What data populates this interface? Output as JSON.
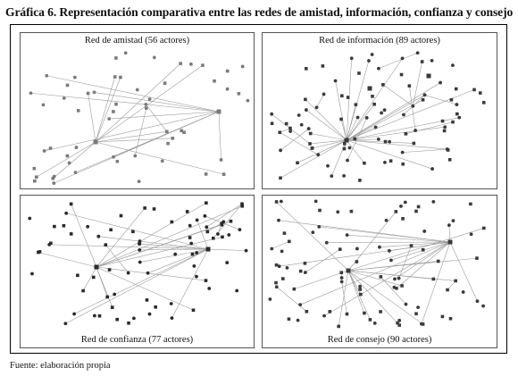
{
  "figure": {
    "title": "Gráfica 6. Representación comparativa entre las redes de amistad, información, confianza y consejo",
    "source": "Fuente: elaboración propia"
  },
  "panels": [
    {
      "id": "amistad",
      "title": "Red de amistad (56 actores)",
      "actors": 56,
      "node_color": "#7a7a7a"
    },
    {
      "id": "informacion",
      "title": "Red de información (89 actores)",
      "actors": 89,
      "node_color": "#3a3a3a"
    },
    {
      "id": "confianza",
      "title": "Red de confianza (77 actores)",
      "actors": 77,
      "node_color": "#2a2a2a"
    },
    {
      "id": "consejo",
      "title": "Red de consejo (90 actores)",
      "actors": 90,
      "node_color": "#3a3a3a"
    }
  ]
}
